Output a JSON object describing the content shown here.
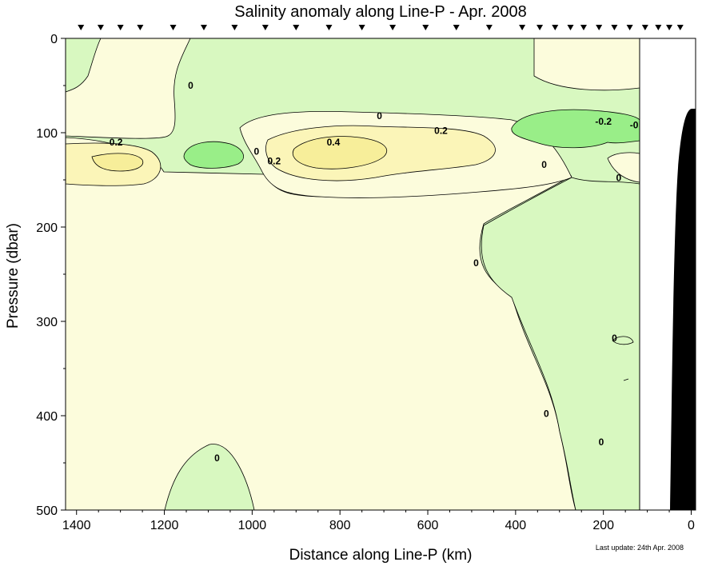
{
  "chart_data": {
    "type": "contour",
    "title": "Salinity anomaly along Line-P - Apr. 2008",
    "xlabel": "Distance along Line-P (km)",
    "ylabel": "Pressure (dbar)",
    "x_reversed": true,
    "y_reversed": true,
    "xlim": [
      1425,
      -10
    ],
    "ylim": [
      0,
      500
    ],
    "x_ticks": [
      1400,
      1200,
      1000,
      800,
      600,
      400,
      200,
      0
    ],
    "x_tick_labels": [
      "1400",
      "1200",
      "1000",
      "800",
      "600",
      "400",
      "200",
      "0"
    ],
    "y_ticks": [
      0,
      100,
      200,
      300,
      400,
      500
    ],
    "y_tick_labels": [
      "0",
      "100",
      "200",
      "300",
      "400",
      "500"
    ],
    "station_markers_km": [
      1390,
      1345,
      1300,
      1255,
      1180,
      1110,
      1040,
      970,
      900,
      825,
      750,
      680,
      605,
      535,
      460,
      385,
      345,
      310,
      275,
      245,
      210,
      175,
      140,
      105,
      75,
      50,
      25
    ],
    "contour_levels": [
      -0.2,
      0,
      0.2,
      0.4
    ],
    "contour_labels": [
      {
        "text": "0",
        "x": 1140,
        "y": 50
      },
      {
        "text": "0.2",
        "x": 1310,
        "y": 110
      },
      {
        "text": "0",
        "x": 990,
        "y": 120
      },
      {
        "text": "0.2",
        "x": 950,
        "y": 130
      },
      {
        "text": "0.4",
        "x": 815,
        "y": 110
      },
      {
        "text": "0",
        "x": 710,
        "y": 82
      },
      {
        "text": "0.2",
        "x": 570,
        "y": 98
      },
      {
        "text": "-0.2",
        "x": 200,
        "y": 88
      },
      {
        "text": "-0",
        "x": 130,
        "y": 92
      },
      {
        "text": "0",
        "x": 335,
        "y": 134
      },
      {
        "text": "0",
        "x": 165,
        "y": 148
      },
      {
        "text": "0",
        "x": 490,
        "y": 238
      },
      {
        "text": "0",
        "x": 175,
        "y": 318
      },
      {
        "text": "0",
        "x": 330,
        "y": 398
      },
      {
        "text": "0",
        "x": 205,
        "y": 428
      },
      {
        "text": "0",
        "x": 1080,
        "y": 445
      }
    ],
    "colors": {
      "negative_strong": "#99ee88",
      "negative": "#d8f8c0",
      "near_zero": "#fcfcdc",
      "positive": "#fbf5b8",
      "strong_positive": "#f7ee9a",
      "bathymetry": "#000000"
    },
    "footnote": "Last update: 24th Apr. 2008"
  }
}
